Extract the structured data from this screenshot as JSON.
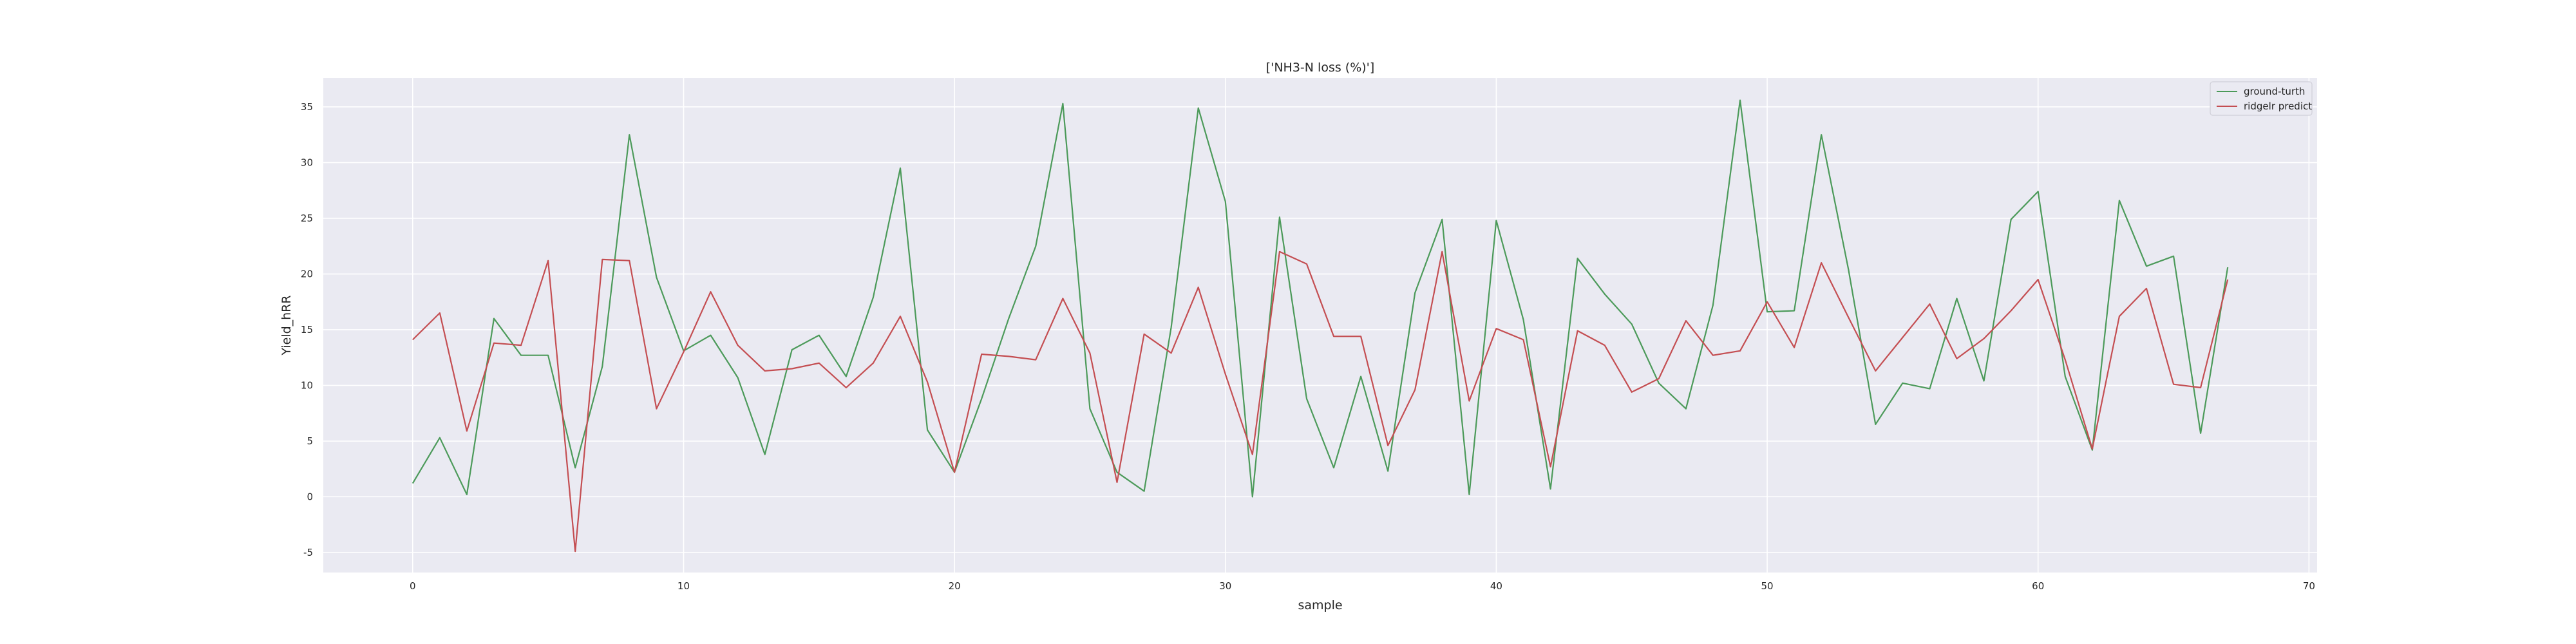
{
  "chart_data": {
    "type": "line",
    "title": "['NH3-N loss (%)']",
    "xlabel": "sample",
    "ylabel": "Yield_hRR",
    "xlim": [
      -3.3,
      70.3
    ],
    "ylim": [
      -6.8,
      37.6
    ],
    "x_ticks": [
      0,
      10,
      20,
      30,
      40,
      50,
      60,
      70
    ],
    "y_ticks": [
      -5,
      0,
      5,
      10,
      15,
      20,
      25,
      30,
      35
    ],
    "grid": true,
    "legend_position": "upper right",
    "series": [
      {
        "name": "ground-turth",
        "color": "#4c9a5a",
        "values": [
          1.2,
          5.3,
          0.2,
          16.0,
          12.7,
          12.7,
          2.6,
          11.7,
          32.5,
          19.7,
          13.1,
          14.5,
          10.7,
          3.8,
          13.2,
          14.5,
          10.8,
          17.9,
          29.5,
          6.0,
          2.2,
          8.8,
          16.0,
          22.5,
          35.3,
          7.9,
          2.2,
          0.5,
          15.2,
          34.9,
          26.5,
          0.0,
          25.1,
          8.8,
          2.6,
          10.8,
          2.3,
          18.3,
          24.9,
          0.2,
          24.8,
          15.9,
          0.7,
          21.4,
          18.2,
          15.5,
          10.2,
          7.9,
          17.2,
          35.6,
          16.6,
          16.7,
          32.5,
          20.4,
          6.5,
          10.2,
          9.7,
          17.8,
          10.4,
          24.9,
          27.4,
          10.8,
          4.2,
          26.6,
          20.7,
          21.6,
          5.7,
          20.6
        ]
      },
      {
        "name": "ridgelr predict",
        "color": "#c44e52",
        "values": [
          14.1,
          16.5,
          5.9,
          13.8,
          13.6,
          21.2,
          -4.9,
          21.3,
          21.2,
          7.9,
          13.0,
          18.4,
          13.6,
          11.3,
          11.5,
          12.0,
          9.8,
          12.0,
          16.2,
          10.3,
          2.2,
          12.8,
          12.6,
          12.3,
          17.8,
          12.9,
          1.3,
          14.6,
          12.9,
          18.8,
          11.0,
          3.8,
          22.0,
          20.9,
          14.4,
          14.4,
          4.6,
          9.6,
          22.0,
          8.6,
          15.1,
          14.1,
          2.7,
          14.9,
          13.6,
          9.4,
          10.6,
          15.8,
          12.7,
          13.1,
          17.5,
          13.4,
          21.0,
          16.1,
          11.3,
          14.3,
          17.3,
          12.4,
          14.2,
          16.7,
          19.5,
          12.3,
          4.3,
          16.2,
          18.7,
          10.1,
          9.8,
          19.5
        ]
      }
    ]
  }
}
